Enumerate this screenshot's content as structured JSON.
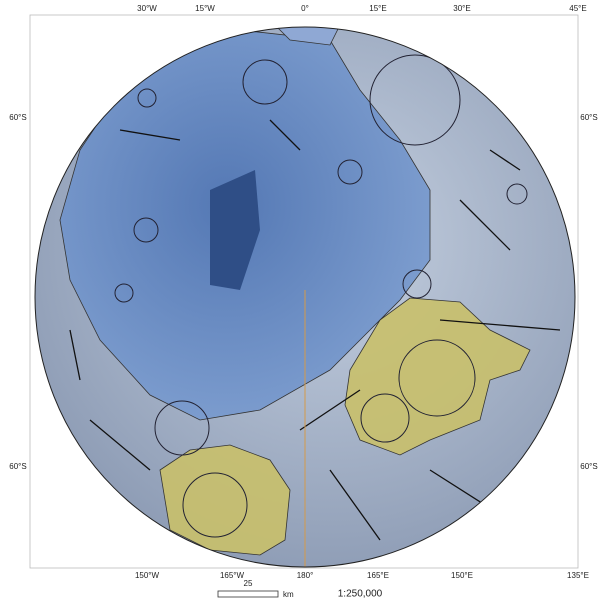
{
  "graticule": {
    "top_labels": [
      "30°W",
      "15°W",
      "0°",
      "15°E",
      "30°E",
      "45°E"
    ],
    "left_labels": [
      "60°S",
      "60°S"
    ],
    "right_labels": [
      "60°S",
      "60°S"
    ],
    "bottom_labels": [
      "150°W",
      "165°W",
      "180°",
      "165°E",
      "150°E",
      "135°E"
    ]
  },
  "scale_bar": {
    "distance": 25,
    "unit": "km",
    "ratio": "1:250,000"
  }
}
